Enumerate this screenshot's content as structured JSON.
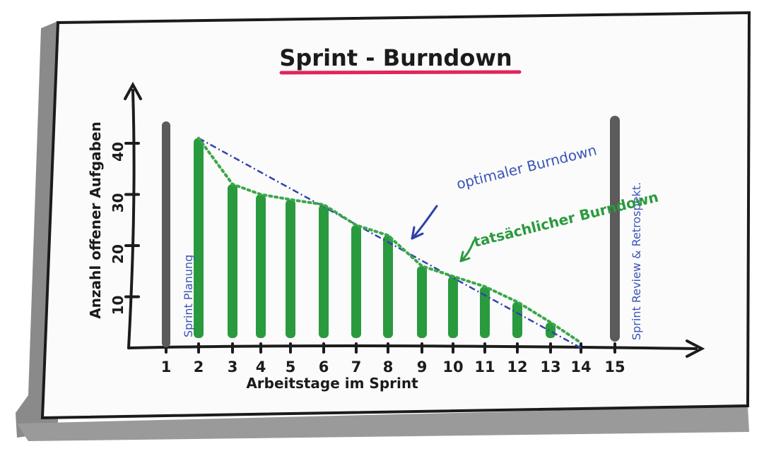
{
  "chart_data": {
    "type": "bar",
    "title": "Sprint - Burndown",
    "xlabel": "Arbeitstage im Sprint",
    "ylabel": "Anzahl offener Aufgaben",
    "x_ticks": [
      "1",
      "2",
      "3",
      "4",
      "5",
      "6",
      "7",
      "8",
      "9",
      "10",
      "11",
      "12",
      "13",
      "14",
      "15"
    ],
    "y_ticks": [
      "10",
      "20",
      "30",
      "40"
    ],
    "ylim": [
      0,
      45
    ],
    "grid": false,
    "series": [
      {
        "name": "tatsächlicher Burndown",
        "type": "bar+line",
        "x": [
          2,
          3,
          4,
          5,
          6,
          7,
          8,
          9,
          10,
          11,
          12,
          13,
          14
        ],
        "values": [
          41,
          32,
          30,
          29,
          28,
          24,
          22,
          16,
          14,
          12,
          9,
          5,
          1
        ]
      },
      {
        "name": "optimaler Burndown",
        "type": "line",
        "x": [
          2,
          14
        ],
        "values": [
          41,
          0
        ]
      }
    ],
    "annotations": [
      {
        "text": "Sprint Planung",
        "x": 1,
        "kind": "phase-bar"
      },
      {
        "text": "Sprint Review & Retrospekt.",
        "x": 15,
        "kind": "phase-bar"
      },
      {
        "text": "optimaler Burndown",
        "target": "optimaler Burndown"
      },
      {
        "text": "tatsächlicher Burndown",
        "target": "tatsächlicher Burndown"
      }
    ],
    "colors": {
      "actual": "#2a9a3e",
      "optimal": "#3342b0",
      "phase_bar": "#5b5b5b",
      "title_underline": "#e0245e",
      "axis": "#1c1c1c",
      "annotation_blue": "#3a54b8"
    }
  }
}
